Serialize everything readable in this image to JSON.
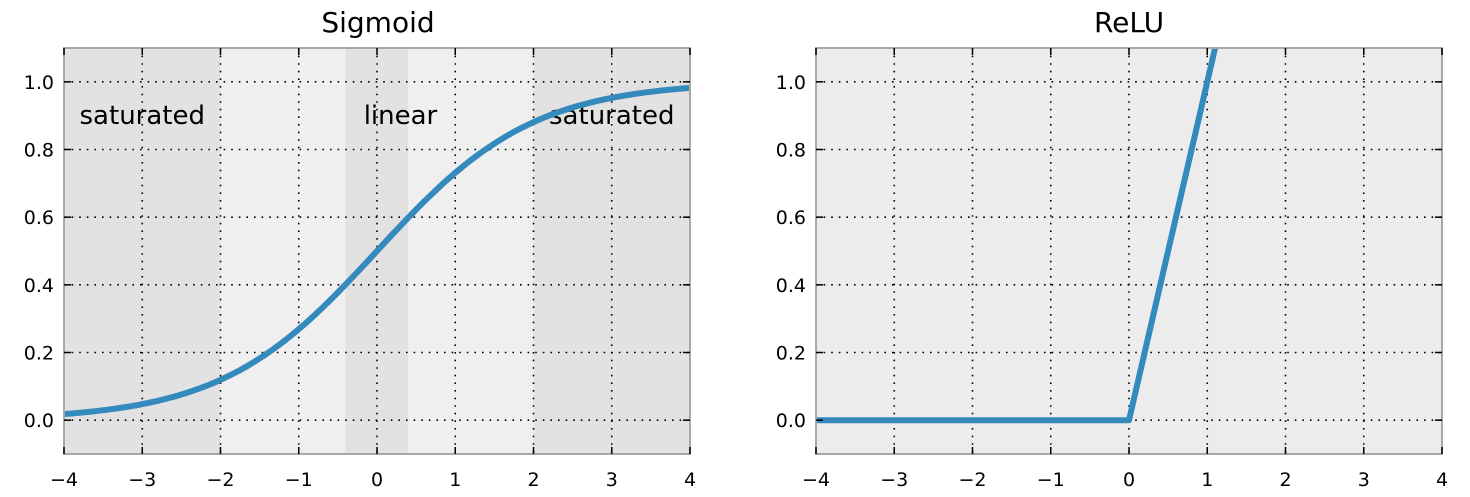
{
  "chart_data": [
    {
      "type": "line",
      "title": "Sigmoid",
      "function": "sigmoid",
      "xlim": [
        -4,
        4
      ],
      "ylim": [
        -0.1,
        1.1
      ],
      "xticks": [
        "−4",
        "−3",
        "−2",
        "−1",
        "0",
        "1",
        "2",
        "3",
        "4"
      ],
      "xtick_values": [
        -4,
        -3,
        -2,
        -1,
        0,
        1,
        2,
        3,
        4
      ],
      "yticks": [
        "0.0",
        "0.2",
        "0.4",
        "0.6",
        "0.8",
        "1.0"
      ],
      "ytick_values": [
        0.0,
        0.2,
        0.4,
        0.6,
        0.8,
        1.0
      ],
      "grid": true,
      "line_color": "#348abd",
      "regions": [
        {
          "label": "saturated",
          "x": [
            -4,
            -2
          ],
          "color": "#e2e2e2",
          "label_x": -3
        },
        {
          "label": "",
          "x": [
            -2,
            -0.4
          ],
          "color": "#efefef"
        },
        {
          "label": "linear",
          "x": [
            -0.4,
            0.4
          ],
          "color": "#e2e2e2",
          "label_x": 0.3
        },
        {
          "label": "",
          "x": [
            0.4,
            2
          ],
          "color": "#efefef"
        },
        {
          "label": "saturated",
          "x": [
            2,
            4
          ],
          "color": "#e2e2e2",
          "label_x": 3
        }
      ],
      "series": [
        {
          "x": [
            -4,
            -3,
            -2,
            -1.5,
            -1,
            -0.5,
            0,
            0.5,
            1,
            1.5,
            2,
            3,
            4
          ],
          "y": [
            0.018,
            0.047,
            0.119,
            0.182,
            0.269,
            0.378,
            0.5,
            0.622,
            0.731,
            0.818,
            0.881,
            0.953,
            0.982
          ]
        }
      ]
    },
    {
      "type": "line",
      "title": "ReLU",
      "function": "relu",
      "xlim": [
        -4,
        4
      ],
      "ylim": [
        -0.1,
        1.1
      ],
      "xticks": [
        "−4",
        "−3",
        "−2",
        "−1",
        "0",
        "1",
        "2",
        "3",
        "4"
      ],
      "xtick_values": [
        -4,
        -3,
        -2,
        -1,
        0,
        1,
        2,
        3,
        4
      ],
      "yticks": [
        "0.0",
        "0.2",
        "0.4",
        "0.6",
        "0.8",
        "1.0"
      ],
      "ytick_values": [
        0.0,
        0.2,
        0.4,
        0.6,
        0.8,
        1.0
      ],
      "grid": true,
      "line_color": "#348abd",
      "background": "#ececec",
      "series": [
        {
          "x": [
            -4,
            -3,
            -2,
            -1,
            0,
            0.5,
            1,
            1.1
          ],
          "y": [
            0,
            0,
            0,
            0,
            0,
            0.5,
            1.0,
            1.1
          ]
        }
      ]
    }
  ]
}
